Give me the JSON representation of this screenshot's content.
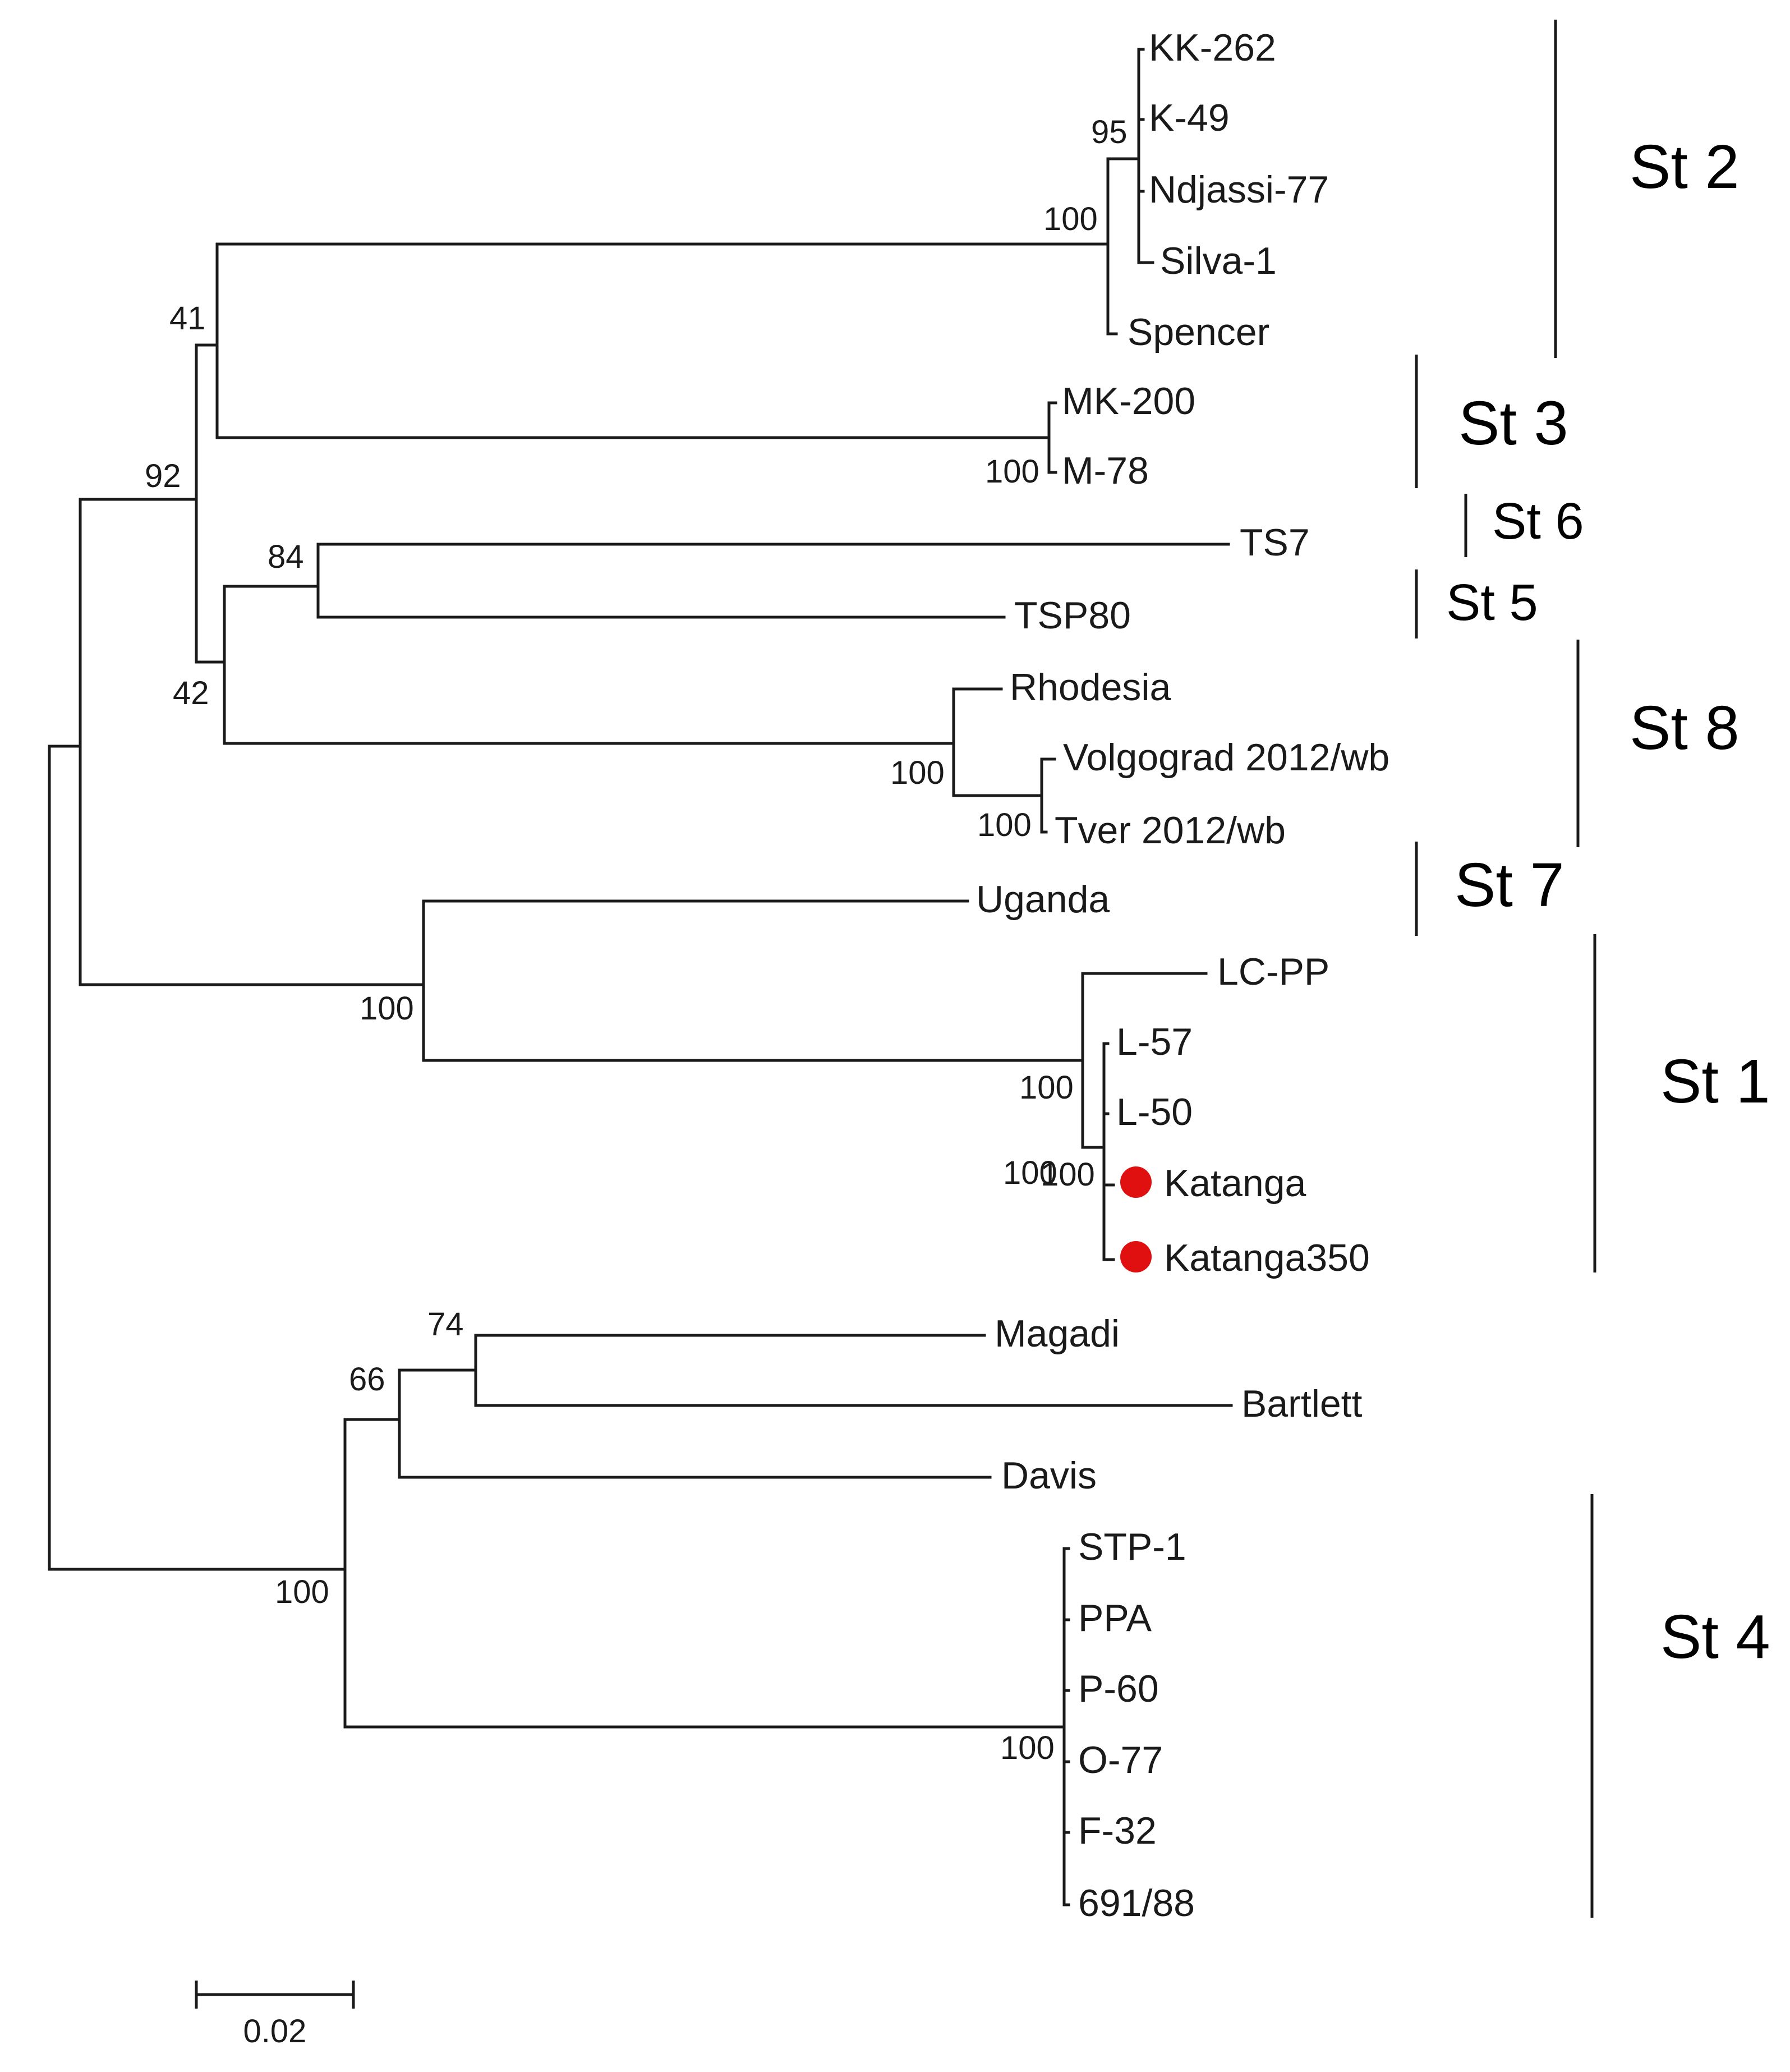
{
  "taxa": [
    "KK-262",
    "K-49",
    "Ndjassi-77",
    "Silva-1",
    "Spencer",
    "MK-200",
    "M-78",
    "TS7",
    "TSP80",
    "Rhodesia",
    "Volgograd 2012/wb",
    "Tver 2012/wb",
    "Uganda",
    "LC-PP",
    "L-57",
    "L-50",
    "Katanga",
    "Katanga350",
    "Magadi",
    "Bartlett",
    "Davis",
    "STP-1",
    "PPA",
    "P-60",
    "O-77",
    "F-32",
    "691/88"
  ],
  "highlighted_taxa": [
    "Katanga",
    "Katanga350"
  ],
  "highlight_color": "#e01010",
  "bootstrap_values": [
    "95",
    "100",
    "41",
    "100",
    "92",
    "84",
    "42",
    "100",
    "100",
    "100",
    "100",
    "100",
    "100",
    "74",
    "66",
    "100",
    "100"
  ],
  "groups": [
    "St 2",
    "St 3",
    "St 6",
    "St 5",
    "St 8",
    "St 7",
    "St 1",
    "St 4"
  ],
  "scale_bar": {
    "label": "0.02",
    "value": 0.02
  }
}
